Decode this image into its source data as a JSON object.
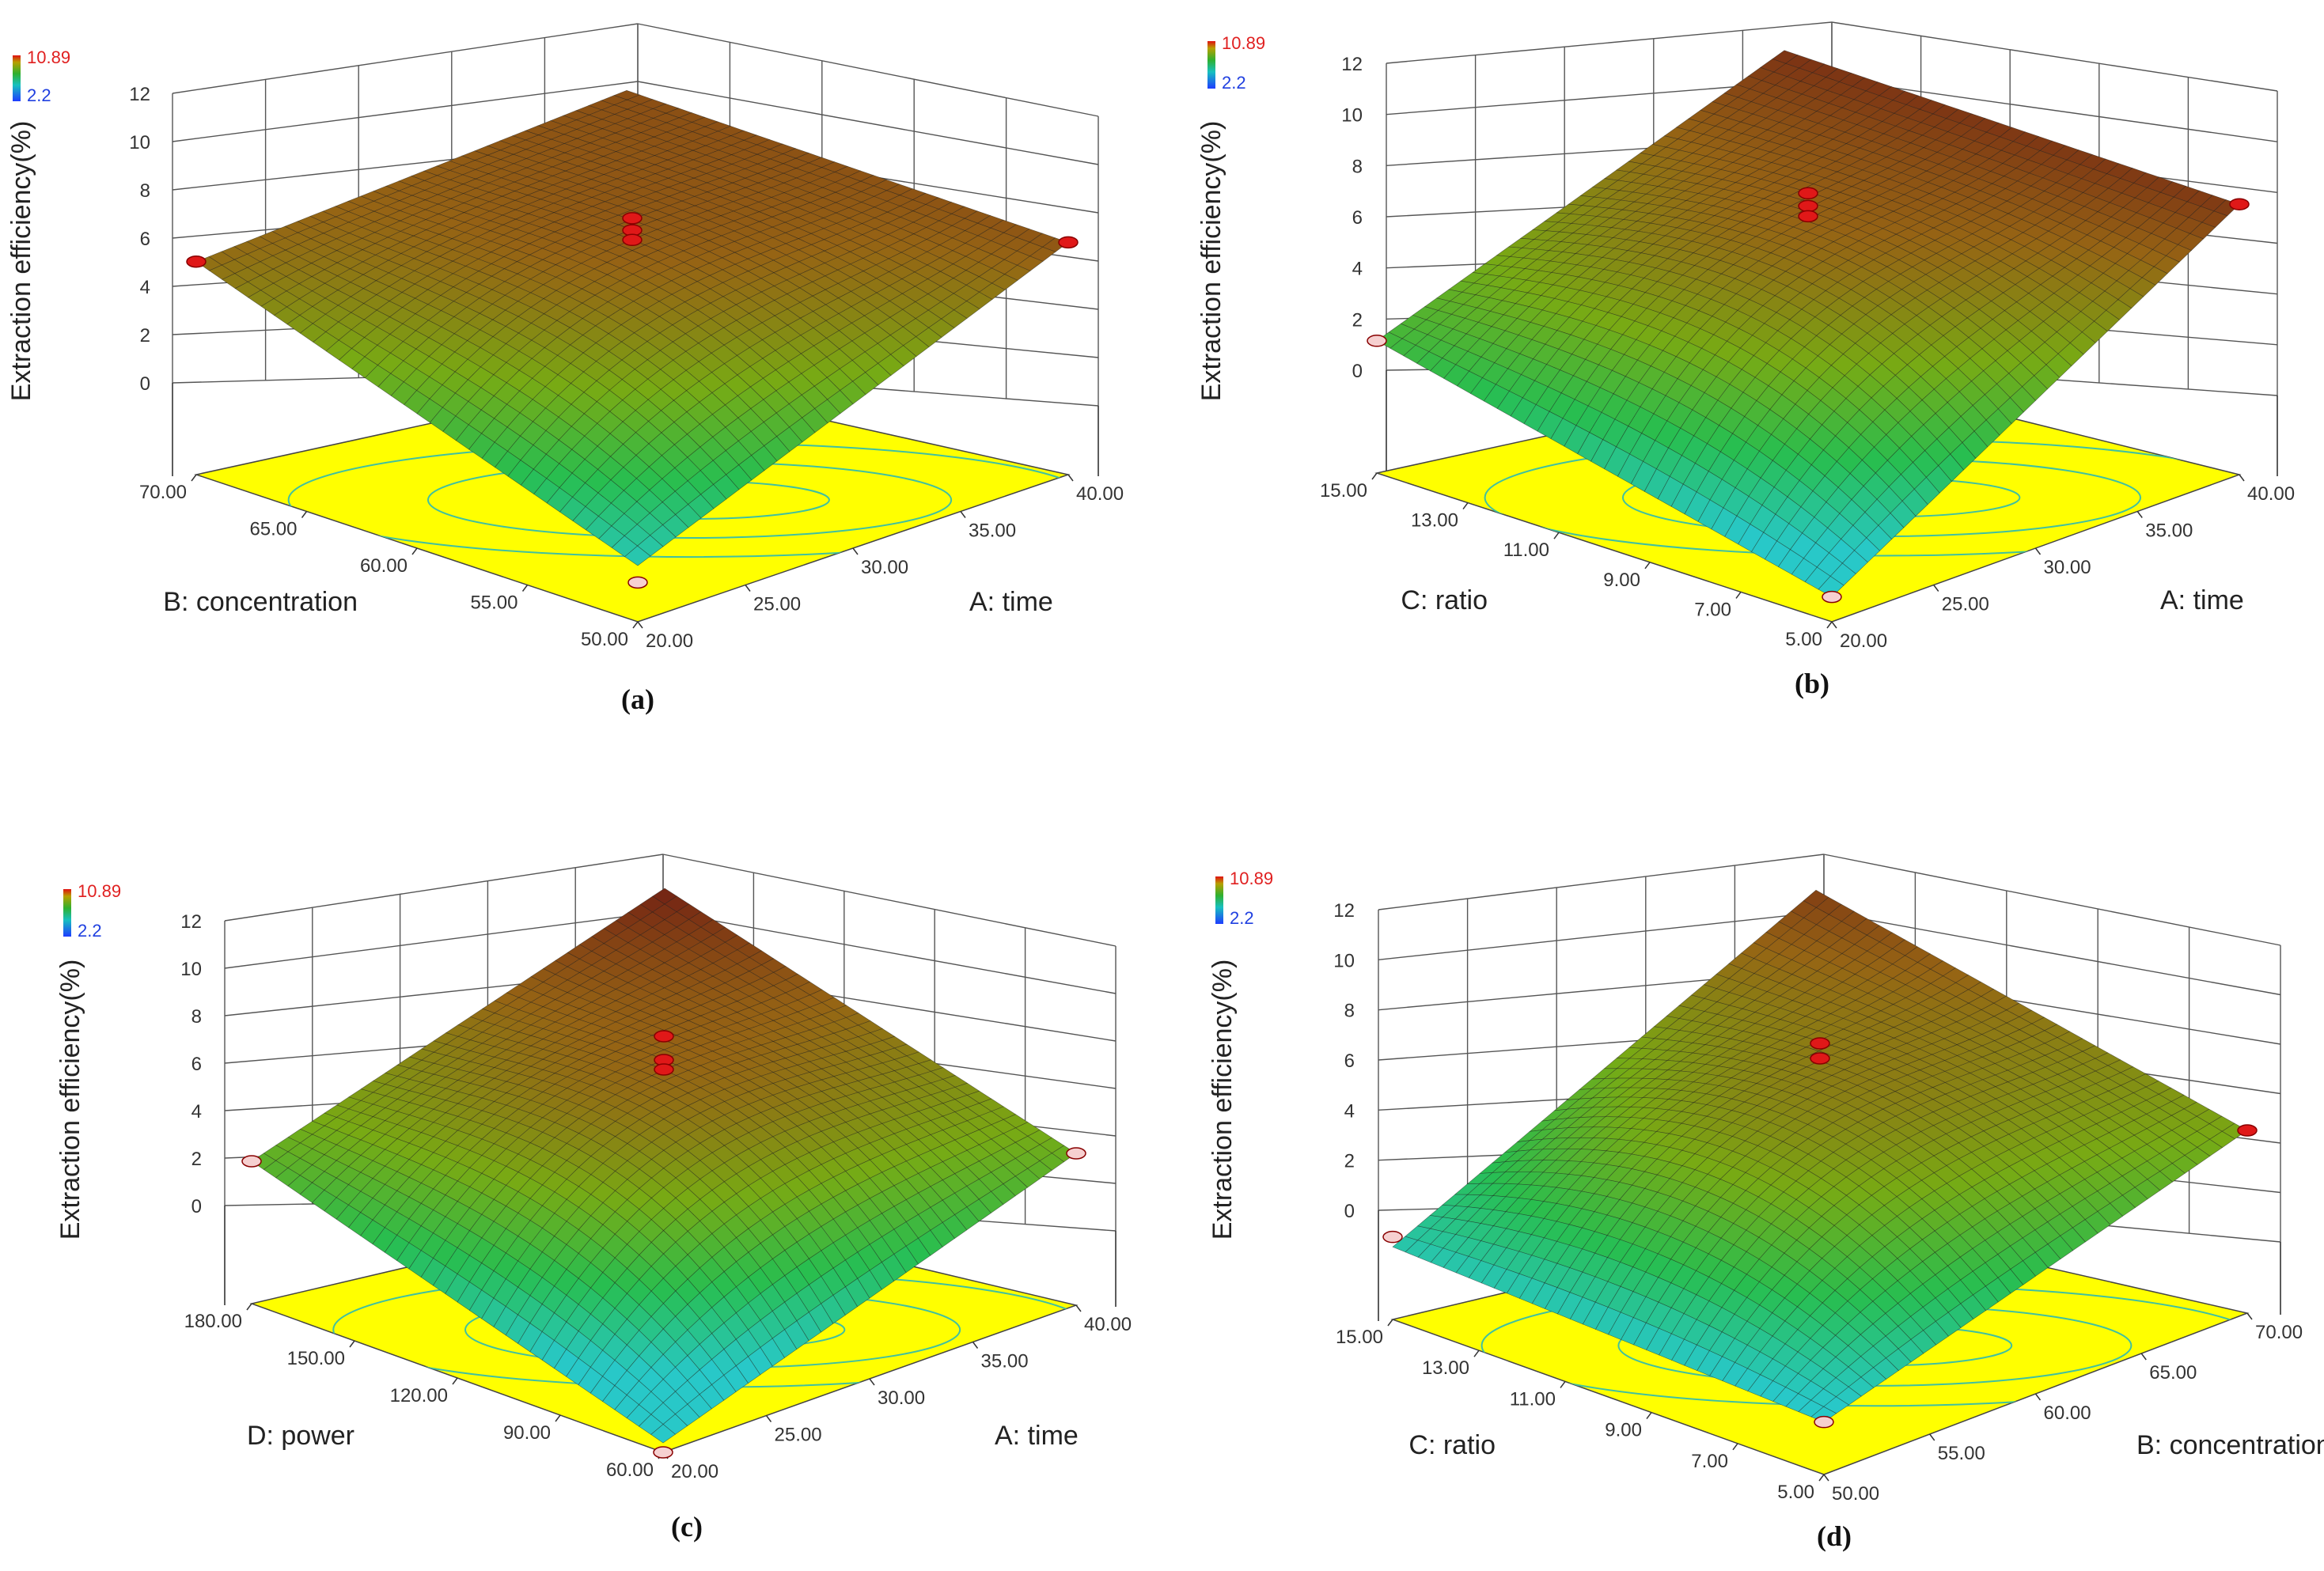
{
  "chart_data": [
    {
      "type": "surface3d",
      "panel_label": "(a)",
      "zlabel": "Extraction efficiency(%)",
      "zticks": [
        "0",
        "2",
        "4",
        "6",
        "8",
        "10",
        "12"
      ],
      "zlim": [
        0,
        12
      ],
      "colorbar": {
        "max_label": "10.89",
        "min_label": "2.2",
        "max": 10.89,
        "min": 2.2
      },
      "x_axis": {
        "label": "A: time",
        "ticks": [
          "20.00",
          "25.00",
          "30.00",
          "35.00",
          "40.00"
        ],
        "range": [
          20,
          40
        ]
      },
      "y_axis": {
        "label": "B: concentration",
        "ticks": [
          "50.00",
          "55.00",
          "60.00",
          "65.00",
          "70.00"
        ],
        "range": [
          50,
          70
        ]
      },
      "corner_values": {
        "front": 2.0,
        "left": 8.5,
        "right": 9.3,
        "back": 9.5
      },
      "center_value": 10.3,
      "design_points": [
        {
          "location": "back",
          "values": [
            10.3,
            9.8,
            9.4
          ]
        },
        {
          "location": "front",
          "values": [
            1.3
          ]
        },
        {
          "location": "left",
          "values": [
            8.5
          ]
        },
        {
          "location": "right",
          "values": [
            9.3
          ]
        }
      ]
    },
    {
      "type": "surface3d",
      "panel_label": "(b)",
      "zlabel": "Extraction efficiency(%)",
      "zticks": [
        "0",
        "2",
        "4",
        "6",
        "8",
        "10",
        "12"
      ],
      "zlim": [
        0,
        12
      ],
      "colorbar": {
        "max_label": "10.89",
        "min_label": "2.2",
        "max": 10.89,
        "min": 2.2
      },
      "x_axis": {
        "label": "A: time",
        "ticks": [
          "20.00",
          "25.00",
          "30.00",
          "35.00",
          "40.00"
        ],
        "range": [
          20,
          40
        ]
      },
      "y_axis": {
        "label": "C: ratio",
        "ticks": [
          "5.00",
          "7.00",
          "9.00",
          "11.00",
          "13.00",
          "15.00"
        ],
        "range": [
          5,
          15
        ]
      },
      "corner_values": {
        "front": 0.6,
        "left": 4.8,
        "right": 10.2,
        "back": 10.4
      },
      "center_value": 10.4,
      "design_points": [
        {
          "location": "back",
          "values": [
            10.6,
            10.1,
            9.7
          ]
        },
        {
          "location": "front",
          "values": [
            0.6
          ]
        },
        {
          "location": "left",
          "values": [
            4.8
          ]
        },
        {
          "location": "right",
          "values": [
            10.2
          ]
        }
      ]
    },
    {
      "type": "surface3d",
      "panel_label": "(c)",
      "zlabel": "Extraction efficiency(%)",
      "zticks": [
        "0",
        "2",
        "4",
        "6",
        "8",
        "10",
        "12"
      ],
      "zlim": [
        0,
        12
      ],
      "colorbar": {
        "max_label": "10.89",
        "min_label": "2.2",
        "max": 10.89,
        "min": 2.2
      },
      "x_axis": {
        "label": "A: time",
        "ticks": [
          "20.00",
          "25.00",
          "30.00",
          "35.00",
          "40.00"
        ],
        "range": [
          20,
          40
        ]
      },
      "y_axis": {
        "label": "D: power",
        "ticks": [
          "60.00",
          "90.00",
          "120.00",
          "150.00",
          "180.00"
        ],
        "range": [
          60,
          180
        ]
      },
      "corner_values": {
        "front": 0.0,
        "left": 5.6,
        "right": 6.0,
        "back": 10.9
      },
      "center_value": 10.9,
      "design_points": [
        {
          "location": "back",
          "values": [
            10.9,
            9.9,
            9.5
          ]
        },
        {
          "location": "front",
          "values": [
            -0.4
          ]
        },
        {
          "location": "left",
          "values": [
            5.6
          ]
        },
        {
          "location": "right",
          "values": [
            6.0
          ]
        }
      ]
    },
    {
      "type": "surface3d",
      "panel_label": "(d)",
      "zlabel": "Extraction efficiency(%)",
      "zticks": [
        "0",
        "2",
        "4",
        "6",
        "8",
        "10",
        "12"
      ],
      "zlim": [
        0,
        12
      ],
      "colorbar": {
        "max_label": "10.89",
        "min_label": "2.2",
        "max": 10.89,
        "min": 2.2
      },
      "x_axis": {
        "label": "B: concentration",
        "ticks": [
          "50.00",
          "55.00",
          "60.00",
          "65.00",
          "70.00"
        ],
        "range": [
          50,
          70
        ]
      },
      "y_axis": {
        "label": "C: ratio",
        "ticks": [
          "5.00",
          "7.00",
          "9.00",
          "11.00",
          "13.00",
          "15.00"
        ],
        "range": [
          5,
          15
        ]
      },
      "corner_values": {
        "front": 1.4,
        "left": 2.2,
        "right": 6.6,
        "back": 10.0
      },
      "center_value": 10.0,
      "design_points": [
        {
          "location": "back",
          "values": [
            10.2,
            9.6
          ]
        },
        {
          "location": "front",
          "values": [
            1.4
          ]
        },
        {
          "location": "left",
          "values": [
            2.6
          ]
        },
        {
          "location": "right",
          "values": [
            6.6
          ]
        }
      ]
    }
  ]
}
